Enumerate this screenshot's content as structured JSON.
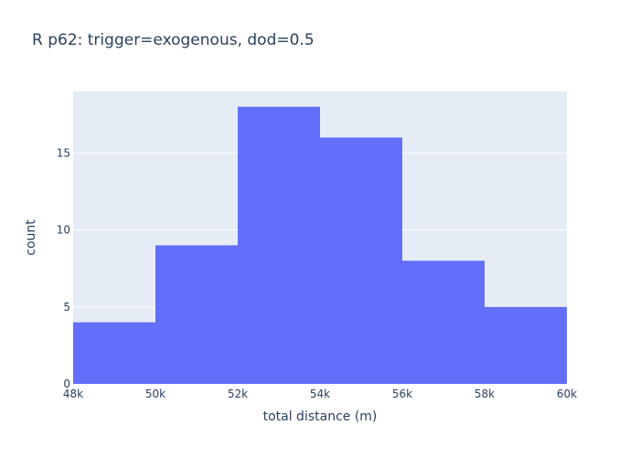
{
  "chart_data": {
    "type": "bar",
    "subtype": "histogram",
    "title": "R p62: trigger=exogenous, dod=0.5",
    "xlabel": "total distance (m)",
    "ylabel": "count",
    "bins": [
      {
        "x0": 48000,
        "x1": 50000,
        "count": 4
      },
      {
        "x0": 50000,
        "x1": 52000,
        "count": 9
      },
      {
        "x0": 52000,
        "x1": 54000,
        "count": 18
      },
      {
        "x0": 54000,
        "x1": 56000,
        "count": 16
      },
      {
        "x0": 56000,
        "x1": 58000,
        "count": 8
      },
      {
        "x0": 58000,
        "x1": 60000,
        "count": 5
      }
    ],
    "xlim": [
      48000,
      60000
    ],
    "ylim": [
      0,
      19
    ],
    "xticks": [
      48000,
      50000,
      52000,
      54000,
      56000,
      58000,
      60000
    ],
    "xtick_labels": [
      "48k",
      "50k",
      "52k",
      "54k",
      "56k",
      "58k",
      "60k"
    ],
    "yticks": [
      0,
      5,
      10,
      15
    ],
    "ytick_labels": [
      "0",
      "5",
      "10",
      "15"
    ],
    "grid": true,
    "colors": {
      "bar": "#636efa",
      "plot_bg": "#e5ecf6",
      "grid": "#ffffff",
      "text": "#2a3f5f"
    }
  }
}
